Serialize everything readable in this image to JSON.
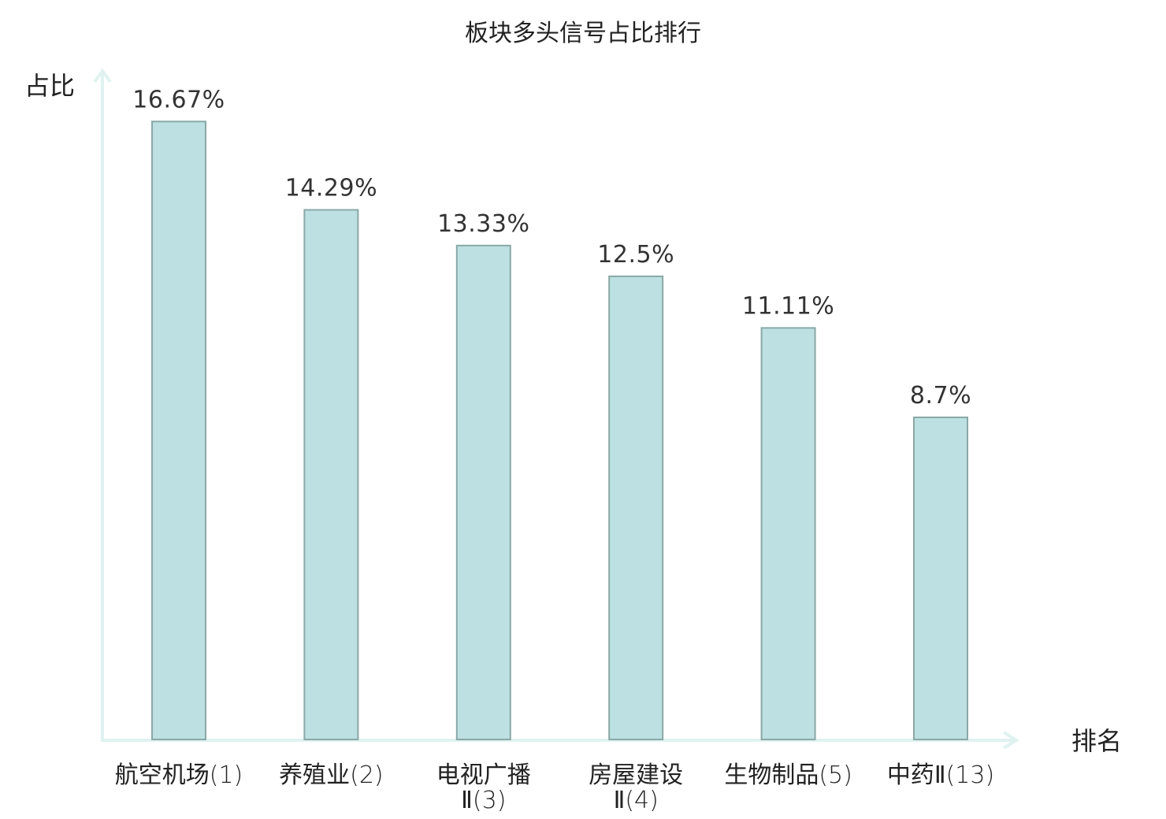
{
  "chart_data": {
    "type": "bar",
    "title": "板块多头信号占比排行",
    "ylabel": "占比",
    "xlabel": "排名",
    "ylim": [
      0,
      18
    ],
    "grid": false,
    "categories": [
      {
        "name": "航空机场",
        "rank": "(1)",
        "highlight": false
      },
      {
        "name": "养殖业",
        "rank": "(2)",
        "highlight": false
      },
      {
        "name": "电视广播",
        "suffix": "Ⅱ",
        "rank": "(3)",
        "highlight": false
      },
      {
        "name": "房屋建设",
        "suffix": "Ⅱ",
        "rank": "(4)",
        "highlight": false
      },
      {
        "name": "生物制品",
        "rank": "(5)",
        "highlight": false
      },
      {
        "name": "中药",
        "suffix": "Ⅱ",
        "rank": "(13)",
        "highlight": true
      }
    ],
    "values": [
      16.67,
      14.29,
      13.33,
      12.5,
      11.11,
      8.7
    ],
    "value_labels": [
      "16.67%",
      "14.29%",
      "13.33%",
      "12.5%",
      "11.11%",
      "8.7%"
    ],
    "colors": {
      "bar_fill": "#bde0e2",
      "bar_stroke": "#8aa8a8",
      "axis": "#dff2f0",
      "highlight_text": "#e0262b",
      "text": "#222222"
    }
  }
}
